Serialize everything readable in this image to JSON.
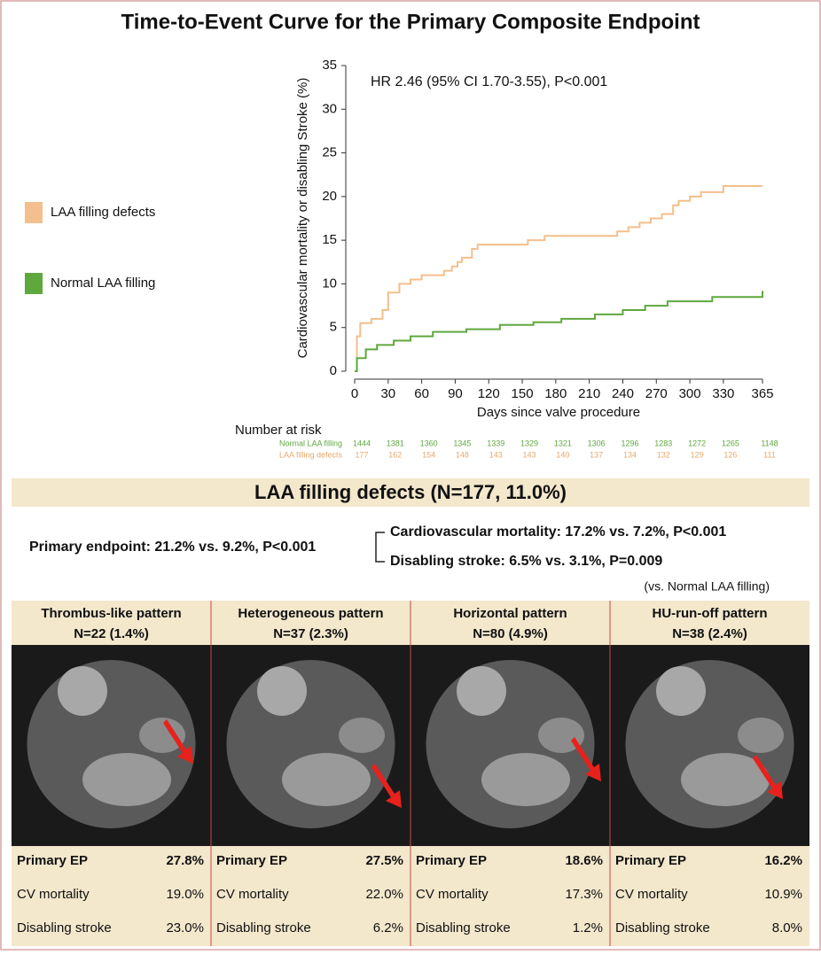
{
  "title": "Time-to-Event Curve for the Primary Composite Endpoint",
  "chart_data": {
    "type": "line",
    "annotation": "HR 2.46 (95% CI 1.70-3.55), P<0.001",
    "xlabel": "Days since valve procedure",
    "ylabel": "Cardiovascular mortality or disabling Stroke (%)",
    "xlim": [
      0,
      365
    ],
    "ylim": [
      0,
      35
    ],
    "xticks": [
      0,
      30,
      60,
      90,
      120,
      150,
      180,
      210,
      240,
      270,
      300,
      330,
      365
    ],
    "yticks": [
      0,
      5,
      10,
      15,
      20,
      25,
      30,
      35
    ],
    "legend": "left",
    "series": [
      {
        "name": "LAA filling defects",
        "color": "#f3bf8c",
        "x": [
          0,
          2,
          5,
          15,
          25,
          30,
          40,
          50,
          60,
          80,
          87,
          92,
          96,
          105,
          110,
          155,
          170,
          235,
          245,
          255,
          265,
          275,
          285,
          290,
          300,
          310,
          330,
          365
        ],
        "values": [
          0,
          4,
          5.5,
          6,
          7,
          9,
          10,
          10.5,
          11,
          11.5,
          12,
          12.5,
          13,
          14,
          14.5,
          15,
          15.5,
          16,
          16.5,
          17,
          17.5,
          18,
          19,
          19.5,
          20,
          20.5,
          21.2,
          21.2
        ]
      },
      {
        "name": "Normal LAA filling",
        "color": "#5fa83e",
        "x": [
          0,
          2,
          10,
          20,
          35,
          50,
          70,
          100,
          130,
          160,
          185,
          215,
          240,
          260,
          280,
          320,
          365
        ],
        "values": [
          0,
          1.5,
          2.5,
          3,
          3.5,
          4,
          4.5,
          4.8,
          5.3,
          5.6,
          6,
          6.5,
          7,
          7.5,
          8,
          8.5,
          9.2
        ]
      }
    ],
    "risk_table": {
      "title": "Number at risk",
      "rows": [
        {
          "name": "Normal LAA filling",
          "color": "#5fa83e",
          "values": [
            1444,
            1381,
            1360,
            1345,
            1339,
            1329,
            1321,
            1306,
            1296,
            1283,
            1272,
            1265,
            1148
          ]
        },
        {
          "name": "LAA filling defects",
          "color": "#e8a86a",
          "values": [
            177,
            162,
            154,
            148,
            143,
            143,
            140,
            137,
            134,
            132,
            129,
            126,
            111
          ]
        }
      ]
    }
  },
  "summary": {
    "heading": "LAA filling defects (N=177, 11.0%)",
    "primary": "Primary endpoint: 21.2% vs. 9.2%, P<0.001",
    "cv_mortality": "Cardiovascular mortality: 17.2% vs. 7.2%, P<0.001",
    "disabling_stroke": "Disabling stroke: 6.5% vs. 3.1%, P=0.009",
    "note": "(vs. Normal LAA filling)"
  },
  "panels": [
    {
      "title": "Thrombus-like pattern",
      "n": "N=22 (1.4%)",
      "rows": [
        [
          "Primary EP",
          "27.8%"
        ],
        [
          "CV mortality",
          "19.0%"
        ],
        [
          "Disabling stroke",
          "23.0%"
        ]
      ]
    },
    {
      "title": "Heterogeneous pattern",
      "n": "N=37 (2.3%)",
      "rows": [
        [
          "Primary EP",
          "27.5%"
        ],
        [
          "CV mortality",
          "22.0%"
        ],
        [
          "Disabling stroke",
          "6.2%"
        ]
      ]
    },
    {
      "title": "Horizontal pattern",
      "n": "N=80 (4.9%)",
      "rows": [
        [
          "Primary EP",
          "18.6%"
        ],
        [
          "CV mortality",
          "17.3%"
        ],
        [
          "Disabling stroke",
          "1.2%"
        ]
      ]
    },
    {
      "title": "HU-run-off pattern",
      "n": "N=38 (2.4%)",
      "rows": [
        [
          "Primary EP",
          "16.2%"
        ],
        [
          "CV mortality",
          "10.9%"
        ],
        [
          "Disabling stroke",
          "8.0%"
        ]
      ]
    }
  ]
}
